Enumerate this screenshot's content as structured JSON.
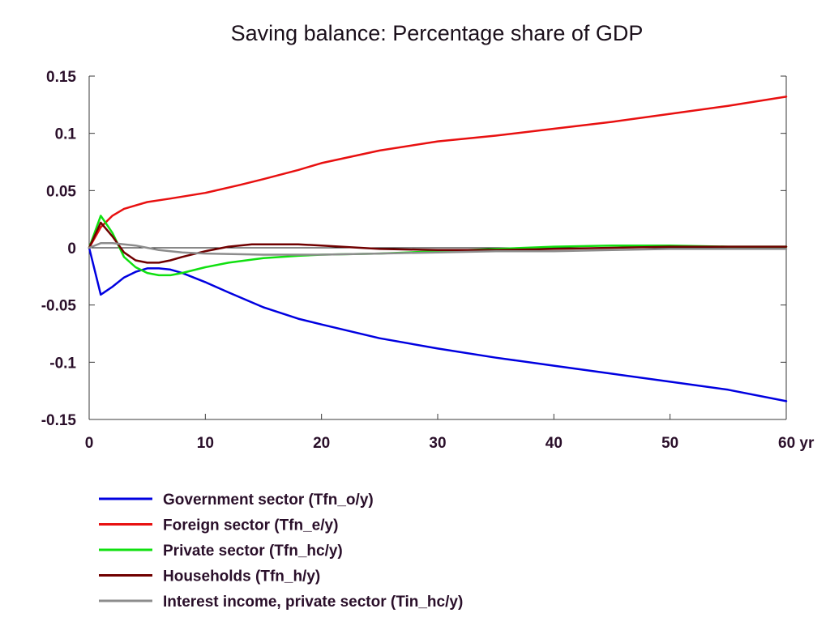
{
  "chart_data": {
    "type": "line",
    "title": "Saving balance: Percentage share of GDP",
    "xlabel": "",
    "ylabel": "",
    "xlim": [
      0,
      60
    ],
    "ylim": [
      -0.15,
      0.15
    ],
    "x_ticks": [
      0,
      10,
      20,
      30,
      40,
      50,
      60
    ],
    "x_tick_labels": [
      "0",
      "10",
      "20",
      "30",
      "40",
      "50",
      "60 yr"
    ],
    "y_ticks": [
      0.15,
      0.1,
      0.05,
      0,
      -0.05,
      -0.1,
      -0.15
    ],
    "y_tick_labels": [
      "0.15",
      "0.1",
      "0.05",
      "0",
      "-0.05",
      "-0.1",
      "-0.15"
    ],
    "grid": false,
    "zero_line": true,
    "legend_position": "bottom",
    "series": [
      {
        "name": "Government sector (Tfn_o/y)",
        "color": "#0000e0",
        "points": [
          [
            0,
            0
          ],
          [
            1,
            -0.041
          ],
          [
            2,
            -0.034
          ],
          [
            3,
            -0.026
          ],
          [
            4,
            -0.021
          ],
          [
            5,
            -0.018
          ],
          [
            6,
            -0.018
          ],
          [
            7,
            -0.019
          ],
          [
            8,
            -0.022
          ],
          [
            10,
            -0.03
          ],
          [
            12,
            -0.039
          ],
          [
            15,
            -0.052
          ],
          [
            18,
            -0.062
          ],
          [
            20,
            -0.067
          ],
          [
            25,
            -0.079
          ],
          [
            30,
            -0.088
          ],
          [
            35,
            -0.096
          ],
          [
            40,
            -0.103
          ],
          [
            45,
            -0.11
          ],
          [
            50,
            -0.117
          ],
          [
            55,
            -0.124
          ],
          [
            60,
            -0.134
          ]
        ]
      },
      {
        "name": "Foreign sector (Tfn_e/y)",
        "color": "#e81010",
        "points": [
          [
            0,
            0
          ],
          [
            1,
            0.018
          ],
          [
            2,
            0.028
          ],
          [
            3,
            0.034
          ],
          [
            4,
            0.037
          ],
          [
            5,
            0.04
          ],
          [
            7,
            0.043
          ],
          [
            10,
            0.048
          ],
          [
            13,
            0.055
          ],
          [
            15,
            0.06
          ],
          [
            18,
            0.068
          ],
          [
            20,
            0.074
          ],
          [
            25,
            0.085
          ],
          [
            30,
            0.093
          ],
          [
            35,
            0.098
          ],
          [
            40,
            0.104
          ],
          [
            45,
            0.11
          ],
          [
            50,
            0.117
          ],
          [
            55,
            0.124
          ],
          [
            60,
            0.132
          ]
        ]
      },
      {
        "name": "Private sector (Tfn_hc/y)",
        "color": "#10e010",
        "points": [
          [
            0,
            0
          ],
          [
            1,
            0.028
          ],
          [
            2,
            0.013
          ],
          [
            3,
            -0.008
          ],
          [
            4,
            -0.017
          ],
          [
            5,
            -0.022
          ],
          [
            6,
            -0.024
          ],
          [
            7,
            -0.024
          ],
          [
            8,
            -0.022
          ],
          [
            10,
            -0.017
          ],
          [
            12,
            -0.013
          ],
          [
            15,
            -0.009
          ],
          [
            18,
            -0.007
          ],
          [
            20,
            -0.006
          ],
          [
            25,
            -0.005
          ],
          [
            30,
            -0.003
          ],
          [
            35,
            -0.001
          ],
          [
            40,
            0.001
          ],
          [
            45,
            0.002
          ],
          [
            50,
            0.002
          ],
          [
            55,
            0.001
          ],
          [
            60,
            0.001
          ]
        ]
      },
      {
        "name": "Households (Tfn_h/y)",
        "color": "#700000",
        "points": [
          [
            0,
            0
          ],
          [
            1,
            0.022
          ],
          [
            2,
            0.01
          ],
          [
            3,
            -0.004
          ],
          [
            4,
            -0.011
          ],
          [
            5,
            -0.013
          ],
          [
            6,
            -0.013
          ],
          [
            7,
            -0.011
          ],
          [
            8,
            -0.008
          ],
          [
            10,
            -0.003
          ],
          [
            12,
            0.001
          ],
          [
            14,
            0.003
          ],
          [
            16,
            0.003
          ],
          [
            18,
            0.003
          ],
          [
            20,
            0.002
          ],
          [
            25,
            -0.001
          ],
          [
            30,
            -0.002
          ],
          [
            35,
            -0.002
          ],
          [
            40,
            -0.001
          ],
          [
            45,
            0
          ],
          [
            50,
            0.001
          ],
          [
            55,
            0.001
          ],
          [
            60,
            0.001
          ]
        ]
      },
      {
        "name": "Interest income, private sector (Tin_hc/y)",
        "color": "#8c8c8c",
        "points": [
          [
            0,
            0
          ],
          [
            1,
            0.004
          ],
          [
            2,
            0.004
          ],
          [
            3,
            0.003
          ],
          [
            4,
            0.002
          ],
          [
            5,
            0
          ],
          [
            6,
            -0.002
          ],
          [
            8,
            -0.004
          ],
          [
            10,
            -0.005
          ],
          [
            15,
            -0.006
          ],
          [
            20,
            -0.006
          ],
          [
            25,
            -0.005
          ],
          [
            30,
            -0.004
          ],
          [
            35,
            -0.003
          ],
          [
            40,
            -0.003
          ],
          [
            45,
            -0.002
          ],
          [
            50,
            -0.001
          ],
          [
            55,
            -0.001
          ],
          [
            60,
            -0.001
          ]
        ]
      }
    ]
  }
}
